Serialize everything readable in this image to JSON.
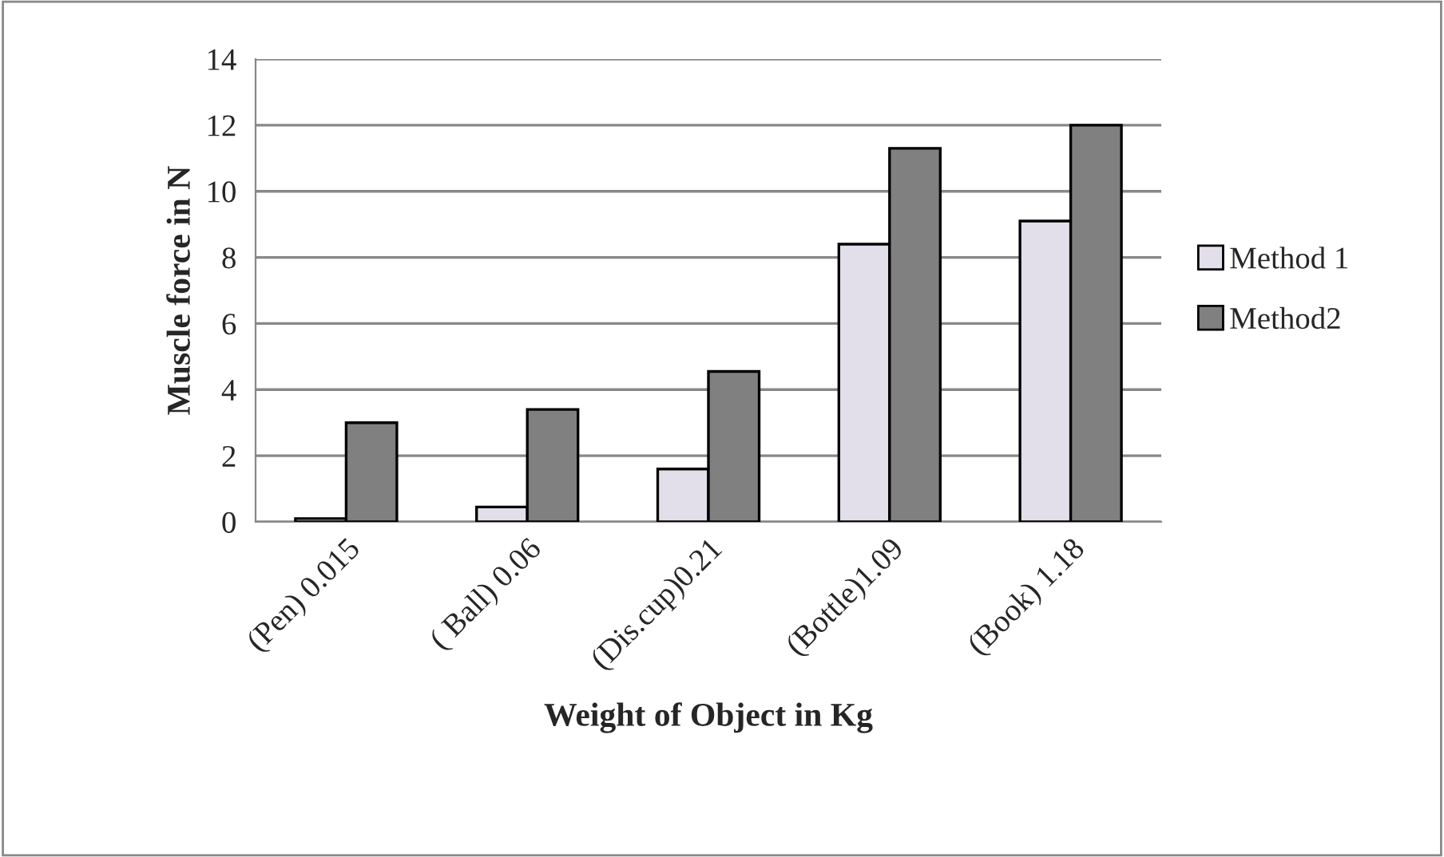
{
  "chart_data": {
    "type": "bar",
    "xlabel": "Weight of Object in Kg",
    "ylabel": "Muscle force in N",
    "categories": [
      "(Pen) 0.015",
      "( Ball) 0.06",
      "(Dis.cup)0.21",
      "(Bottle)1.09",
      "(Book) 1.18"
    ],
    "series": [
      {
        "name": "Method 1",
        "color": "#e3dfea",
        "values": [
          0.1,
          0.45,
          1.6,
          8.4,
          9.1
        ]
      },
      {
        "name": "Method2",
        "color": "#808080",
        "values": [
          3.0,
          3.4,
          4.55,
          11.3,
          12.0
        ]
      }
    ],
    "ylim": [
      0,
      14
    ],
    "yticks": [
      0,
      2,
      4,
      6,
      8,
      10,
      12,
      14
    ],
    "grid": "y",
    "legend": "right"
  }
}
